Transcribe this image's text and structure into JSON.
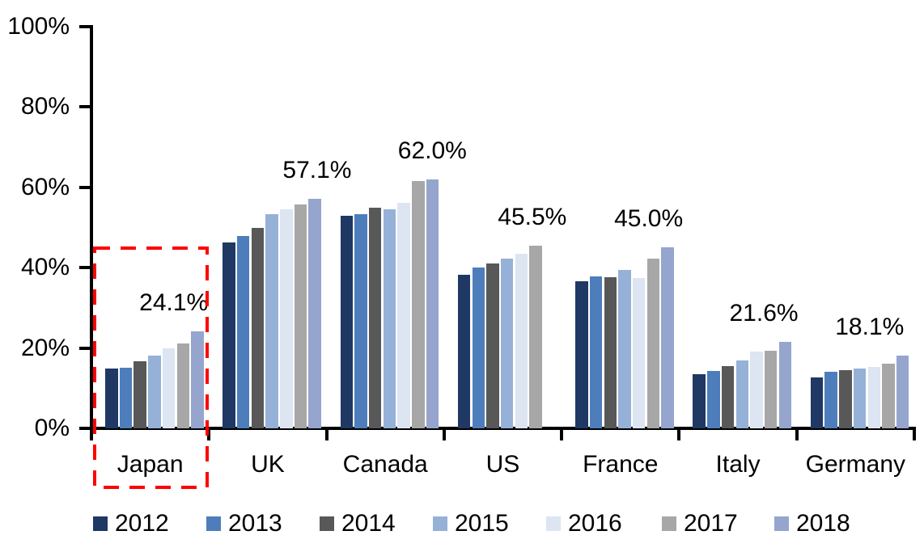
{
  "chart_data": {
    "type": "bar",
    "categories": [
      "Japan",
      "UK",
      "Canada",
      "US",
      "France",
      "Italy",
      "Germany"
    ],
    "y_tick_labels": [
      "100%",
      "80%",
      "60%",
      "40%",
      "20%",
      "0%"
    ],
    "ylim": [
      0,
      100
    ],
    "grid": "off",
    "legend_position": "bottom",
    "series": [
      {
        "name": "2012",
        "color": "#1F3864",
        "values": [
          14.8,
          46.3,
          53.0,
          38.3,
          36.6,
          13.4,
          12.7
        ]
      },
      {
        "name": "2013",
        "color": "#4D7EBB",
        "values": [
          15.0,
          47.9,
          53.4,
          40.1,
          37.9,
          14.2,
          14.1
        ]
      },
      {
        "name": "2014",
        "color": "#585858",
        "values": [
          16.8,
          49.9,
          54.9,
          41.1,
          37.7,
          15.5,
          14.4
        ]
      },
      {
        "name": "2015",
        "color": "#96B1D7",
        "values": [
          18.1,
          53.3,
          54.6,
          42.3,
          39.4,
          17.0,
          14.8
        ]
      },
      {
        "name": "2016",
        "color": "#DCE5F1",
        "values": [
          20.0,
          54.6,
          56.2,
          43.5,
          37.4,
          19.2,
          15.3
        ]
      },
      {
        "name": "2017",
        "color": "#A7A7A7",
        "values": [
          21.1,
          55.7,
          61.6,
          45.5,
          42.3,
          19.4,
          16.0
        ]
      },
      {
        "name": "2018",
        "color": "#95A5CE",
        "values": [
          24.1,
          57.1,
          62.0,
          null,
          45.0,
          21.6,
          18.1
        ]
      }
    ],
    "value_labels": [
      "24.1%",
      "57.1%",
      "62.0%",
      "45.5%",
      "45.0%",
      "21.6%",
      "18.1%"
    ],
    "annotation": {
      "shape": "dashed-rectangle",
      "color": "#FF0000",
      "highlighted_category": "Japan"
    },
    "axis_color": "#000000",
    "background_color": "#FFFFFF",
    "text_color": "#000000"
  }
}
